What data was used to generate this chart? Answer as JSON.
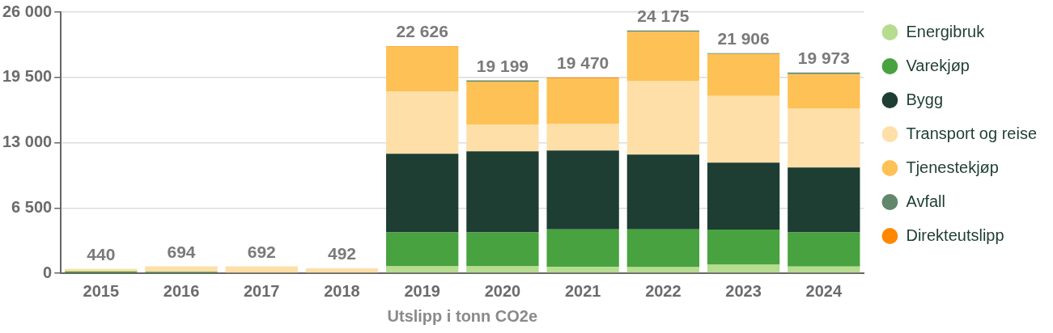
{
  "chart_data": {
    "type": "bar",
    "stacked": true,
    "xlabel": "Utslipp i tonn CO2e",
    "categories": [
      "2015",
      "2016",
      "2017",
      "2018",
      "2019",
      "2020",
      "2021",
      "2022",
      "2023",
      "2024"
    ],
    "series": [
      {
        "name": "Energibruk",
        "color": "#b5dc8f",
        "values": [
          60,
          null,
          0,
          0,
          680,
          680,
          625,
          600,
          845,
          656
        ]
      },
      {
        "name": "Varekjøp",
        "color": "#48a23f",
        "values": [
          120,
          150,
          0,
          0,
          3387,
          3387,
          3745,
          3770,
          3501,
          3411
        ]
      },
      {
        "name": "Bygg",
        "color": "#1e3d33",
        "values": [
          0,
          0,
          0,
          0,
          7823,
          8069,
          7848,
          7438,
          6667,
          6454
        ]
      },
      {
        "name": "Transport og reise",
        "color": "#fedfa8",
        "values": [
          260,
          544,
          692,
          492,
          6175,
          2649,
          2624,
          7347,
          6642,
          5904
        ]
      },
      {
        "name": "Tjenestekjøp",
        "color": "#fec155",
        "values": [
          0,
          0,
          0,
          0,
          4491,
          4300,
          4535,
          4871,
          4182,
          3398
        ]
      },
      {
        "name": "Avfall",
        "color": "#62876a",
        "values": [
          0,
          0,
          0,
          0,
          0,
          114,
          0,
          149,
          69,
          150
        ]
      },
      {
        "name": "Direkteutslipp",
        "color": "#ff8800",
        "values": [
          0,
          0,
          0,
          0,
          70,
          0,
          93,
          0,
          0,
          0
        ]
      }
    ],
    "totals": [
      "440",
      "694",
      "692",
      "492",
      "22 626",
      "19 199",
      "19 470",
      "24 175",
      "21 906",
      "19 973"
    ],
    "ylim": [
      0,
      26000
    ],
    "yticks": [
      0,
      {
        "value": 6500,
        "label": "6 500"
      },
      {
        "value": 13000,
        "label": "13 000"
      },
      {
        "value": 19500,
        "label": "19 500"
      },
      {
        "value": 26000,
        "label": "26 000"
      }
    ],
    "grid": "y",
    "legend": "right"
  }
}
